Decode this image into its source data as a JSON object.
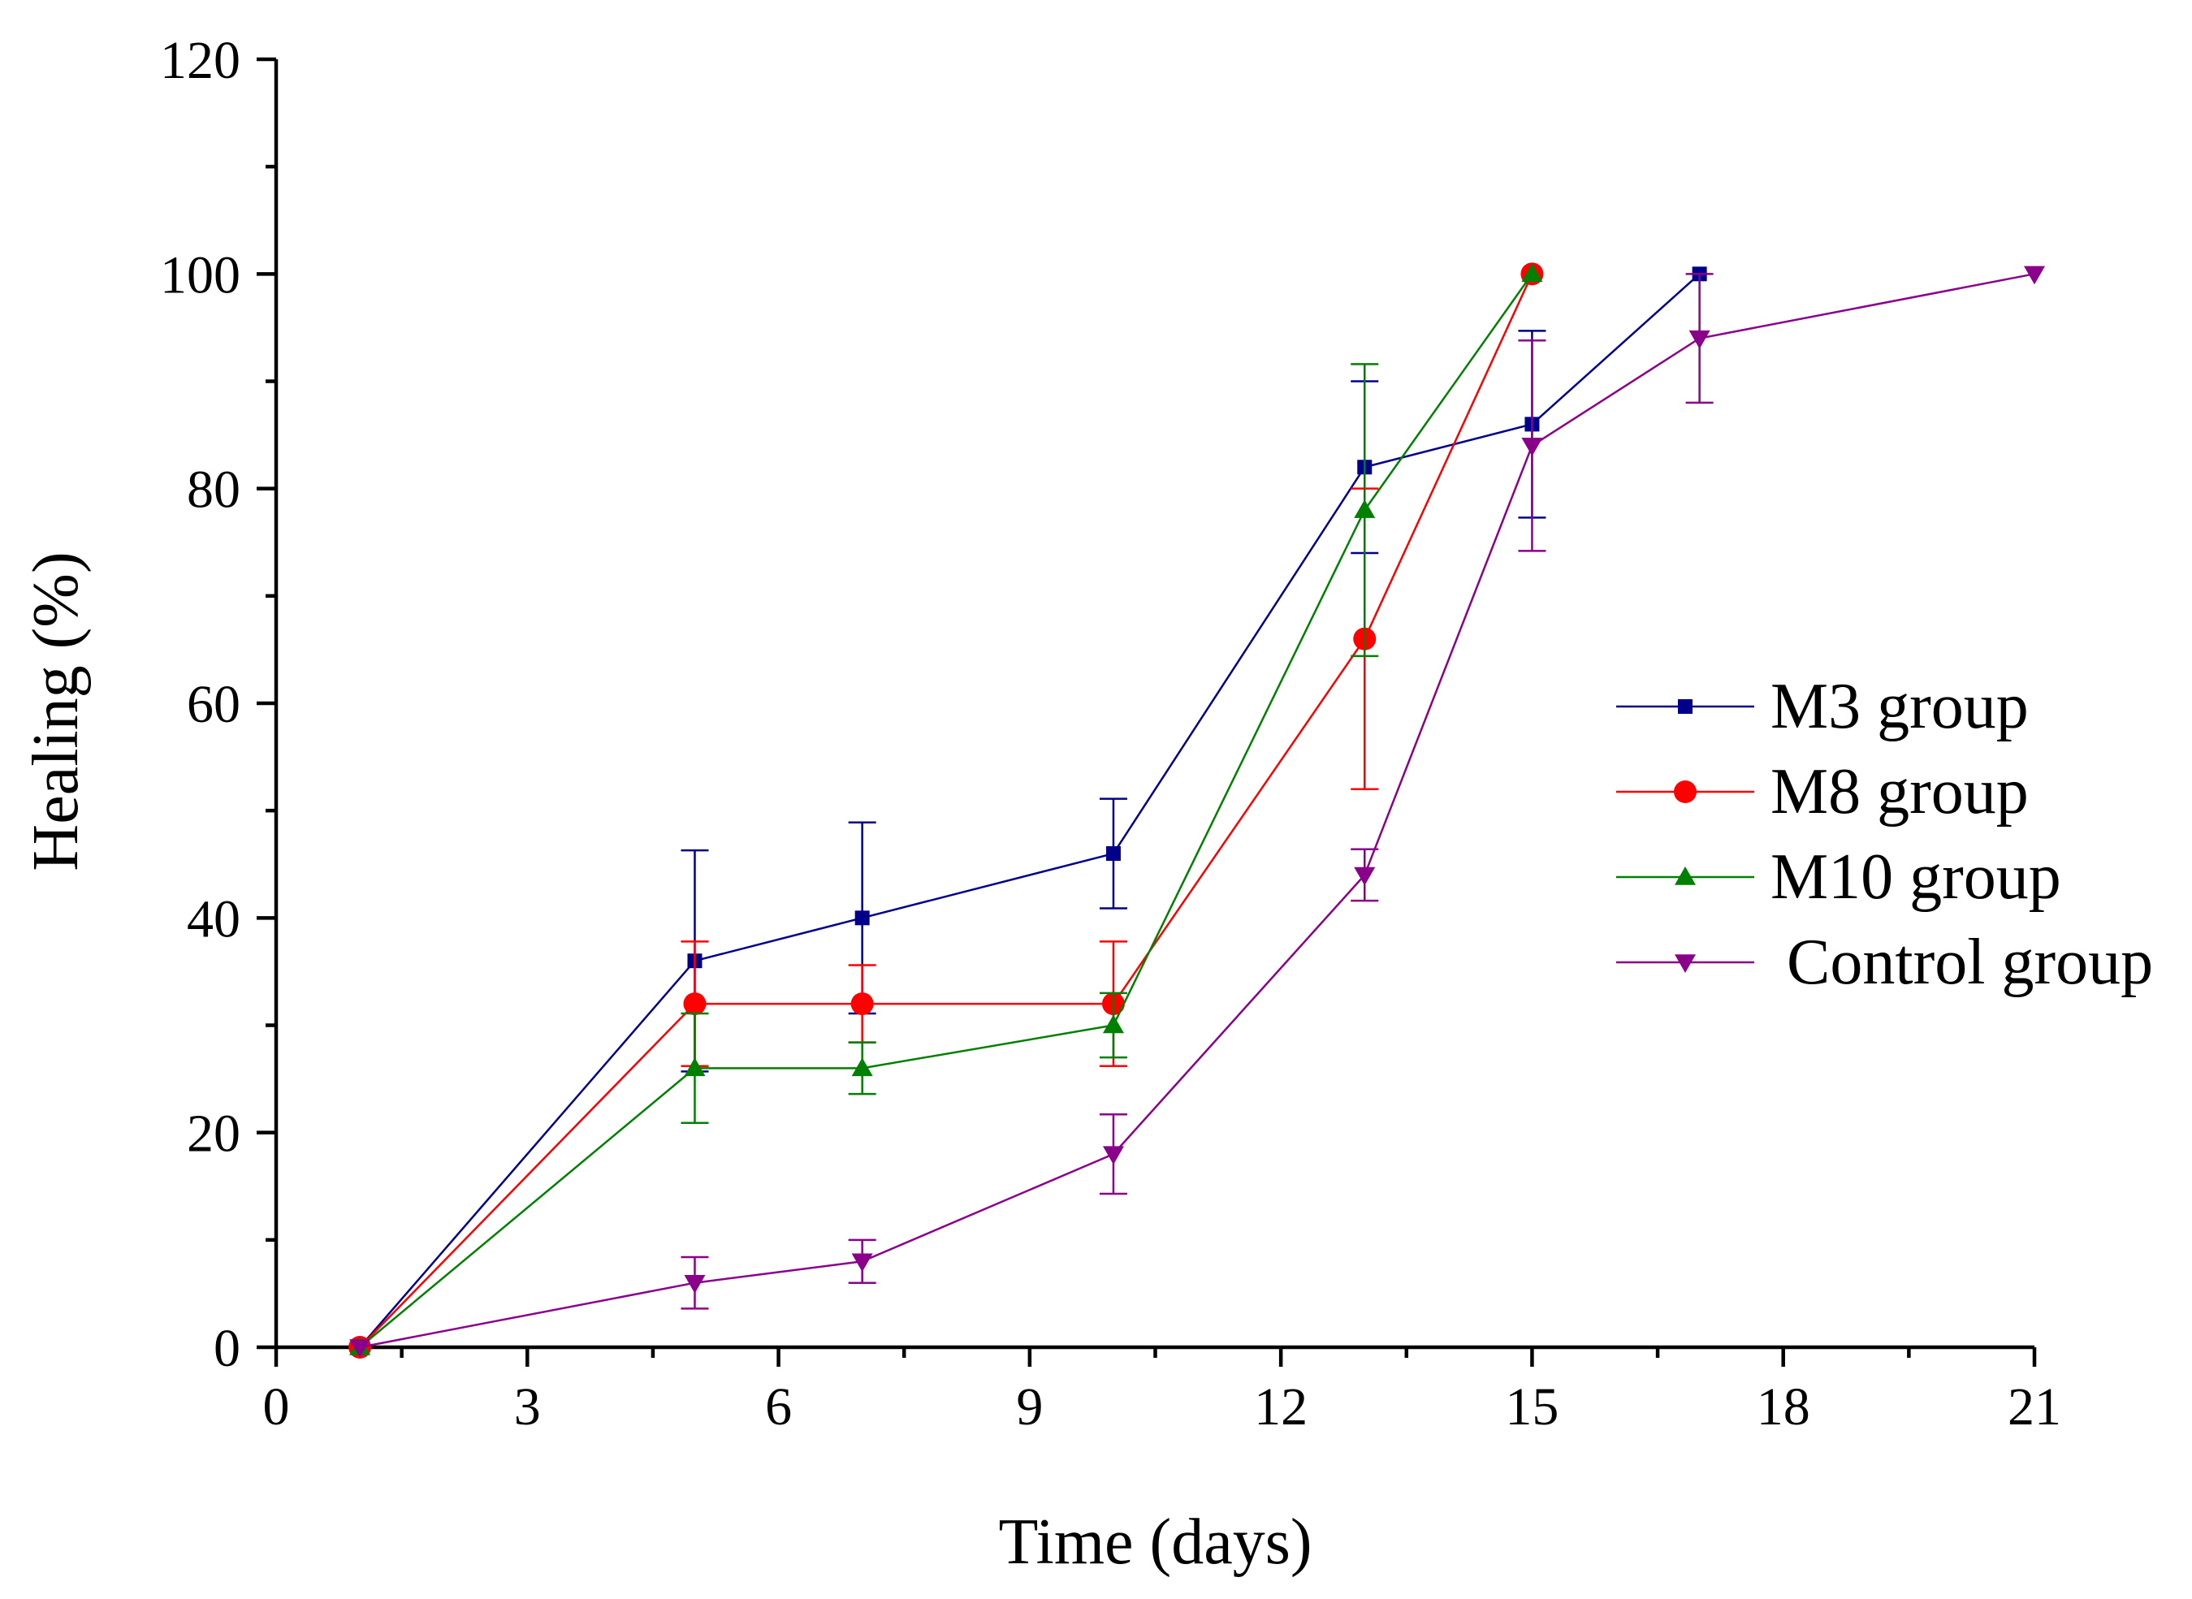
{
  "chart_data": {
    "type": "line",
    "title": "",
    "xlabel": "Time (days)",
    "ylabel": "Healing (%)",
    "xlim": [
      0,
      21
    ],
    "ylim": [
      0,
      120
    ],
    "xticks": [
      0,
      3,
      6,
      9,
      12,
      15,
      18,
      21
    ],
    "xtick_labels": [
      "0",
      "3",
      "6",
      "9",
      "12",
      "15",
      "18",
      "21"
    ],
    "yticks": [
      0,
      20,
      40,
      60,
      80,
      100,
      120
    ],
    "ytick_labels": [
      "0",
      "20",
      "40",
      "60",
      "80",
      "100",
      "120"
    ],
    "grid": false,
    "legend_position": "center-right",
    "series": [
      {
        "name": "M3 group",
        "color": "#00008b",
        "marker": "square",
        "points": [
          {
            "x": 1,
            "y": 0,
            "err": 0
          },
          {
            "x": 5,
            "y": 36,
            "err": 10.3
          },
          {
            "x": 7,
            "y": 40,
            "err": 8.9
          },
          {
            "x": 10,
            "y": 46,
            "err": 5.1
          },
          {
            "x": 13,
            "y": 82,
            "err": 8
          },
          {
            "x": 15,
            "y": 86,
            "err": 8.7
          },
          {
            "x": 17,
            "y": 100,
            "err": 0
          }
        ]
      },
      {
        "name": "M8 group",
        "color": "#ff0000",
        "marker": "circle",
        "points": [
          {
            "x": 1,
            "y": 0,
            "err": 0
          },
          {
            "x": 5,
            "y": 32,
            "err": 5.8
          },
          {
            "x": 7,
            "y": 32,
            "err": 3.6
          },
          {
            "x": 10,
            "y": 32,
            "err": 5.8
          },
          {
            "x": 13,
            "y": 66,
            "err": 14
          },
          {
            "x": 15,
            "y": 100,
            "err": 0
          }
        ]
      },
      {
        "name": "M10 group",
        "color": "#008000",
        "marker": "triangle-up",
        "points": [
          {
            "x": 1,
            "y": 0,
            "err": 0
          },
          {
            "x": 5,
            "y": 26,
            "err": 5.1
          },
          {
            "x": 7,
            "y": 26,
            "err": 2.4
          },
          {
            "x": 10,
            "y": 30,
            "err": 3
          },
          {
            "x": 13,
            "y": 78,
            "err": 13.6
          },
          {
            "x": 15,
            "y": 100,
            "err": 0
          }
        ]
      },
      {
        "name": " Control group",
        "color": "#8b008b",
        "marker": "triangle-down",
        "points": [
          {
            "x": 1,
            "y": 0,
            "err": 0
          },
          {
            "x": 5,
            "y": 6,
            "err": 2.4
          },
          {
            "x": 7,
            "y": 8,
            "err": 2
          },
          {
            "x": 10,
            "y": 18,
            "err": 3.7
          },
          {
            "x": 13,
            "y": 44,
            "err": 2.4
          },
          {
            "x": 15,
            "y": 84,
            "err": 9.8
          },
          {
            "x": 17,
            "y": 94,
            "err": 6
          },
          {
            "x": 21,
            "y": 100,
            "err": 0
          }
        ]
      }
    ]
  }
}
